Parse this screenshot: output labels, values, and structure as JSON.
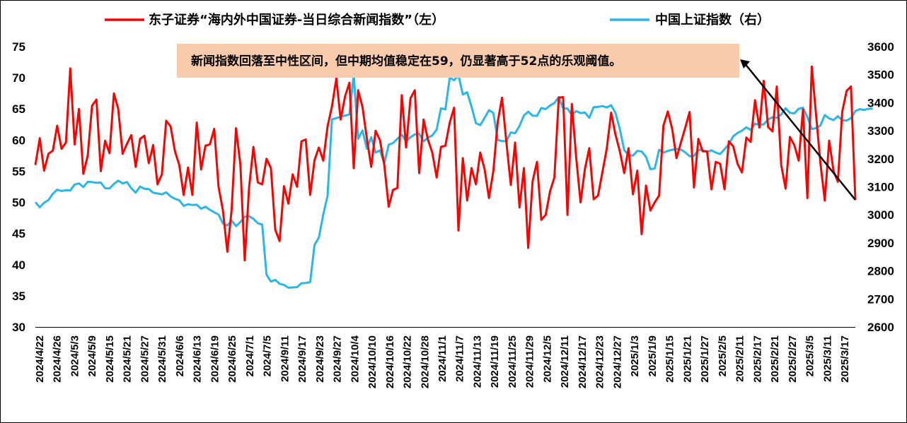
{
  "chart_data": {
    "type": "line",
    "title": "",
    "legend": {
      "placement": "top",
      "left_label": "东子证券“海内外中国证券-当日综合新闻指数”（左）",
      "right_label": "中国上证指数（右）"
    },
    "annotation": "新闻指数回落至中性区间，但中期均值稳定在59，仍显著高于52点的乐观阈值。",
    "y_left": {
      "min": 30,
      "max": 75,
      "ticks": [
        "75",
        "70",
        "65",
        "60",
        "55",
        "50",
        "45",
        "40",
        "35",
        "30"
      ]
    },
    "y_right": {
      "min": 2600,
      "max": 3600,
      "ticks": [
        "3600",
        "3500",
        "3400",
        "3300",
        "3200",
        "3100",
        "3000",
        "2900",
        "2800",
        "2700",
        "2600"
      ]
    },
    "grid": false,
    "x_labels": [
      "2024/4/22",
      "2024/4/26",
      "2024/5/3",
      "2024/5/9",
      "2024/5/15",
      "2024/5/21",
      "2024/5/27",
      "2024/5/31",
      "2024/6/6",
      "2024/6/13",
      "2024/6/19",
      "2024/6/25",
      "2024/7/1",
      "2024/7/5",
      "2024/9/11",
      "2024/9/17",
      "2024/9/23",
      "2024/9/27",
      "2024/10/4",
      "2024/10/10",
      "2024/10/16",
      "2024/10/22",
      "2024/10/28",
      "2024/11/1",
      "2024/11/7",
      "2024/11/13",
      "2024/11/19",
      "2024/11/25",
      "2024/11/29",
      "2024/12/5",
      "2024/12/11",
      "2024/12/17",
      "2024/12/23",
      "2024/12/27",
      "2025/1/3",
      "2025/1/9",
      "2025/1/15",
      "2025/1/21",
      "2025/1/27",
      "2025/2/5",
      "2025/2/11",
      "2025/2/17",
      "2025/2/21",
      "2025/2/27",
      "2025/3/5",
      "2025/3/11",
      "2025/3/17"
    ],
    "colors": {
      "news": "#FF0000",
      "sse": "#29B6E8",
      "annotation_bg": "#F8CBAD"
    },
    "series": [
      {
        "name": "东子证券“海内外中国证券-当日综合新闻指数”（左）",
        "axis": "left",
        "values": [
          56,
          60.3,
          55.1,
          57.8,
          58.3,
          62.3,
          58.6,
          59.6,
          71.5,
          59.3,
          65,
          54.6,
          57.5,
          65.5,
          66.5,
          55,
          59.9,
          57.9,
          67.5,
          65,
          57.8,
          59.4,
          60.8,
          55.7,
          60.2,
          60.7,
          56.3,
          59.2,
          52.9,
          54.5,
          63.1,
          62.2,
          58.2,
          56,
          51.2,
          55.6,
          51.2,
          62.8,
          55.3,
          59.1,
          59.3,
          61.8,
          52.5,
          48.7,
          42.1,
          48.8,
          61.9,
          56,
          40.7,
          52.4,
          58.9,
          53.2,
          52.9,
          57,
          55.5,
          45.6,
          43.8,
          52.6,
          49.8,
          54.5,
          52.5,
          59.8,
          60.1,
          51.2,
          56.8,
          58.8,
          56.7,
          62.2,
          65.4,
          69.9,
          63.3,
          67,
          69.2,
          55.5,
          68,
          65.3,
          60.3,
          55.7,
          61.5,
          60,
          56,
          49.3,
          52,
          52.3,
          67.2,
          58.8,
          66.7,
          68,
          54.7,
          63.3,
          60.1,
          58,
          54,
          58.9,
          59.1,
          62.8,
          65.2,
          45.5,
          57.1,
          50.3,
          55.5,
          52.9,
          58,
          55.3,
          50.7,
          55,
          62.9,
          66.8,
          59.6,
          52.8,
          59.6,
          49.2,
          55.5,
          42.7,
          53.4,
          56.5,
          47.2,
          48,
          51.8,
          54,
          66.8,
          66.9,
          48,
          65.8,
          57.2,
          50,
          55.4,
          58.7,
          50.5,
          51.1,
          54.8,
          58.6,
          64.4,
          60.9,
          58.2,
          54.7,
          58.7,
          51.3,
          55.1,
          44.9,
          52.7,
          48.7,
          50,
          51.1,
          62.3,
          64.6,
          61.8,
          57.1,
          59.6,
          62,
          64.5,
          52.4,
          60.2,
          58.2,
          58.2,
          52.1,
          56.5,
          56.2,
          52.1,
          59.8,
          59,
          56.2,
          54.8,
          60.4,
          59.7,
          66.4,
          62,
          69.5,
          62.1,
          61.4,
          68.6,
          56,
          52.2,
          60.5,
          59.2,
          56.7,
          64.9,
          50.7,
          71.8,
          64,
          56.2,
          50.3,
          59.9,
          55,
          53.3,
          64.6,
          67.9,
          68.6,
          50.4
        ]
      },
      {
        "name": "中国上证指数（右）",
        "axis": "right",
        "values": [
          3045,
          3027,
          3043,
          3053,
          3075,
          3090,
          3085,
          3088,
          3087,
          3108,
          3112,
          3099,
          3118,
          3117,
          3114,
          3115,
          3095,
          3094,
          3110,
          3122,
          3112,
          3117,
          3095,
          3079,
          3101,
          3093,
          3092,
          3079,
          3076,
          3073,
          3080,
          3066,
          3057,
          3052,
          3032,
          3038,
          3035,
          3036,
          3022,
          3029,
          3018,
          3009,
          3001,
          2969,
          2962,
          2979,
          2960,
          2974,
          2993,
          2995,
          2986,
          2970,
          2965,
          2787,
          2762,
          2768,
          2754,
          2750,
          2740,
          2741,
          2742,
          2756,
          2757,
          2760,
          2893,
          2919,
          3001,
          3068,
          3340,
          3345,
          3349,
          3354,
          3358,
          3501,
          3271,
          3301,
          3236,
          3277,
          3222,
          3230,
          3183,
          3250,
          3256,
          3271,
          3286,
          3262,
          3277,
          3287,
          3289,
          3262,
          3275,
          3283,
          3304,
          3380,
          3376,
          3489,
          3480,
          3498,
          3429,
          3437,
          3386,
          3327,
          3320,
          3346,
          3373,
          3364,
          3267,
          3263,
          3263,
          3294,
          3291,
          3317,
          3354,
          3368,
          3354,
          3353,
          3381,
          3377,
          3390,
          3399,
          3420,
          3380,
          3379,
          3356,
          3370,
          3363,
          3365,
          3346,
          3384,
          3385,
          3388,
          3383,
          3391,
          3364,
          3306,
          3231,
          3213,
          3211,
          3228,
          3226,
          3207,
          3163,
          3165,
          3232,
          3222,
          3228,
          3232,
          3235,
          3233,
          3223,
          3209,
          3210,
          3232,
          3231,
          3224,
          3230,
          3222,
          3217,
          3234,
          3252,
          3280,
          3292,
          3300,
          3312,
          3303,
          3325,
          3321,
          3323,
          3340,
          3348,
          3346,
          3358,
          3380,
          3364,
          3362,
          3378,
          3382,
          3348,
          3306,
          3309,
          3319,
          3356,
          3344,
          3338,
          3352,
          3337,
          3336,
          3345,
          3370,
          3377,
          3374,
          3378,
          3379
        ]
      }
    ],
    "arrow": {
      "from_index": 127,
      "to_index": 205
    }
  }
}
